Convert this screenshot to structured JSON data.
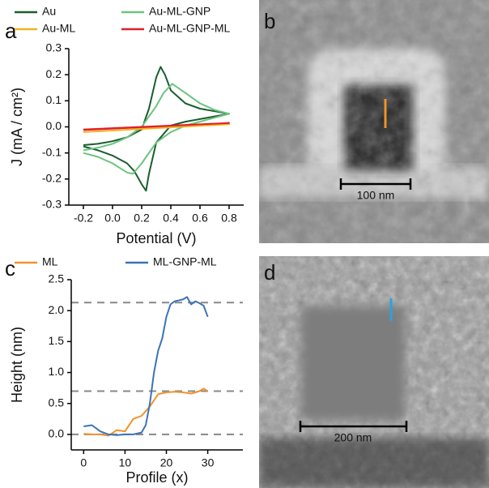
{
  "chart_data": [
    {
      "type": "line",
      "panel_label": "a",
      "x_label": "Potential (V)",
      "y_label": "J (mA / cm²)",
      "xlim": [
        -0.3,
        0.9
      ],
      "ylim": [
        -0.3,
        0.3
      ],
      "xticks": [
        -0.2,
        {
          "value": 0,
          "label": "0.0"
        },
        0.2,
        0.4,
        0.6,
        0.8
      ],
      "yticks": [
        -0.3,
        -0.2,
        -0.1,
        {
          "value": 0,
          "label": "0.0"
        },
        0.1,
        0.2,
        0.3
      ],
      "series": [
        {
          "name": "Au",
          "color": "#1a5e2e",
          "x": [
            -0.2,
            -0.1,
            0,
            0.1,
            0.2,
            0.25,
            0.3,
            0.33,
            0.36,
            0.4,
            0.5,
            0.6,
            0.7,
            0.8,
            0.7,
            0.6,
            0.5,
            0.4,
            0.3,
            0.25,
            0.23,
            0.2,
            0.15,
            0.1,
            0,
            -0.1,
            -0.2
          ],
          "values": [
            -0.07,
            -0.065,
            -0.055,
            -0.04,
            -0.01,
            0.07,
            0.19,
            0.23,
            0.2,
            0.14,
            0.09,
            0.07,
            0.06,
            0.05,
            0.04,
            0.03,
            0.02,
            0.005,
            -0.06,
            -0.18,
            -0.245,
            -0.22,
            -0.17,
            -0.14,
            -0.11,
            -0.09,
            -0.075
          ]
        },
        {
          "name": "Au-ML-GNP",
          "color": "#6cc47f",
          "x": [
            -0.2,
            -0.1,
            0,
            0.1,
            0.2,
            0.3,
            0.35,
            0.41,
            0.5,
            0.6,
            0.7,
            0.8,
            0.7,
            0.6,
            0.5,
            0.4,
            0.3,
            0.2,
            0.14,
            0.1,
            0,
            -0.1,
            -0.2
          ],
          "values": [
            -0.09,
            -0.08,
            -0.065,
            -0.04,
            0,
            0.08,
            0.13,
            0.165,
            0.13,
            0.09,
            0.065,
            0.05,
            0.035,
            0.02,
            0.005,
            -0.02,
            -0.06,
            -0.14,
            -0.18,
            -0.175,
            -0.14,
            -0.115,
            -0.1
          ]
        },
        {
          "name": "Au-ML",
          "color": "#f0b323",
          "x": [
            -0.2,
            0.8,
            -0.2
          ],
          "values": [
            -0.02,
            0.01,
            -0.01
          ]
        },
        {
          "name": "Au-ML-GNP-ML",
          "color": "#e0202a",
          "x": [
            -0.2,
            0.8,
            -0.2
          ],
          "values": [
            -0.01,
            0.015,
            -0.012
          ]
        }
      ]
    },
    {
      "type": "line",
      "panel_label": "c",
      "x_label": "Profile (x)",
      "y_label": "Height (nm)",
      "xlim": [
        -3,
        38.5
      ],
      "ylim": [
        -0.25,
        2.5
      ],
      "xticks": [
        0,
        10,
        20,
        30
      ],
      "yticks": [
        {
          "value": 0,
          "label": "0.0"
        },
        0.5,
        {
          "value": 1,
          "label": "1.0"
        },
        {
          "value": 1.5,
          "label": "1.5"
        },
        {
          "value": 2,
          "label": "2.0"
        },
        2.5
      ],
      "hlines": [
        0,
        0.7,
        2.13
      ],
      "series": [
        {
          "name": "ML",
          "color": "#f0922b",
          "x": [
            0,
            2,
            4,
            6,
            8,
            10,
            12,
            14,
            16,
            18,
            20,
            22,
            24,
            26,
            28,
            29,
            30
          ],
          "values": [
            0.01,
            0,
            0,
            -0.02,
            0.07,
            0.05,
            0.25,
            0.3,
            0.45,
            0.65,
            0.68,
            0.69,
            0.68,
            0.66,
            0.7,
            0.74,
            0.7
          ]
        },
        {
          "name": "ML-GNP-ML",
          "color": "#3c73b8",
          "x": [
            0,
            2,
            4,
            6,
            8,
            10,
            12,
            14,
            15,
            16,
            17,
            18,
            19,
            20,
            21,
            22,
            24,
            25,
            26,
            27,
            28,
            29,
            30
          ],
          "values": [
            0.13,
            0.15,
            0.05,
            0,
            -0.01,
            0,
            0,
            0.03,
            0.15,
            0.5,
            1.0,
            1.35,
            1.55,
            1.9,
            2.1,
            2.15,
            2.18,
            2.22,
            2.1,
            2.15,
            2.12,
            2.08,
            1.9
          ]
        }
      ]
    }
  ],
  "images": [
    {
      "label": "b",
      "scale_bar": "100 nm"
    },
    {
      "label": "d",
      "scale_bar": "200 nm"
    }
  ]
}
